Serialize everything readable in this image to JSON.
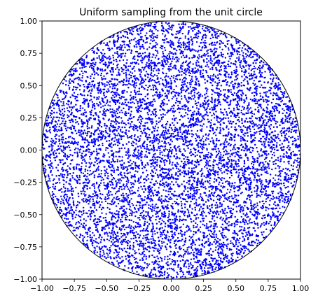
{
  "chart_data": {
    "type": "scatter",
    "title": "Uniform sampling from the unit circle",
    "xlabel": "",
    "ylabel": "",
    "xlim": [
      -1.0,
      1.0
    ],
    "ylim": [
      -1.0,
      1.0
    ],
    "x_ticks": [
      -1.0,
      -0.75,
      -0.5,
      -0.25,
      0.0,
      0.25,
      0.5,
      0.75,
      1.0
    ],
    "x_tick_labels": [
      "−1.00",
      "−0.75",
      "−0.50",
      "−0.25",
      "0.00",
      "0.25",
      "0.50",
      "0.75",
      "1.00"
    ],
    "y_ticks": [
      1.0,
      0.75,
      0.5,
      0.25,
      0.0,
      -0.25,
      -0.5,
      -0.75,
      -1.0
    ],
    "y_tick_labels": [
      "1.00",
      "0.75",
      "0.50",
      "0.25",
      "0.00",
      "−0.25",
      "−0.50",
      "−0.75",
      "−1.00"
    ],
    "grid": false,
    "legend": "none",
    "boundary_circle": {
      "center": [
        0,
        0
      ],
      "radius": 1,
      "color": "#000000"
    },
    "series": [
      {
        "marker_color": "#0000ff",
        "distribution": "uniform in unit disk",
        "approx_point_count": 10000
      }
    ]
  }
}
